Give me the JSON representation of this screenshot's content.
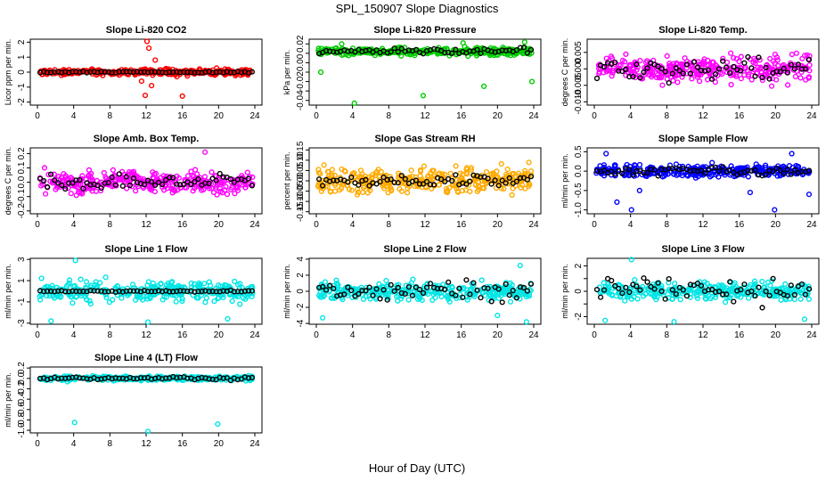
{
  "figure": {
    "title": "SPL_150907  Slope Diagnostics",
    "xlabel": "Hour of Day (UTC)",
    "x_ticks": [
      "0",
      "4",
      "8",
      "12",
      "16",
      "20",
      "24"
    ]
  },
  "chart_data": [
    {
      "type": "scatter",
      "title": "Slope Li-820 CO2",
      "ylabel": "Licor ppm per min.",
      "color": "#ff0000",
      "xlim": [
        0,
        24
      ],
      "ylim": [
        -2.2,
        2.2
      ],
      "y_ticks": [
        -2,
        -1,
        0,
        1,
        2
      ],
      "spread": 0.2,
      "black_spread": 0.05,
      "outliers": [
        [
          12.1,
          2.05
        ],
        [
          12.3,
          1.6
        ],
        [
          11.9,
          -1.55
        ],
        [
          16.0,
          -1.6
        ],
        [
          12.6,
          -0.9
        ],
        [
          13.0,
          0.8
        ],
        [
          11.5,
          -0.6
        ]
      ]
    },
    {
      "type": "scatter",
      "title": "Slope Li-820 Pressure",
      "ylabel": "kPa per min.",
      "color": "#00cc00",
      "xlim": [
        0,
        24
      ],
      "ylim": [
        -0.045,
        0.025
      ],
      "y_ticks": [
        -0.04,
        -0.03,
        -0.02,
        -0.01,
        0.0,
        0.01,
        0.02
      ],
      "y_tick_labels": [
        "-0.04",
        "",
        "-0.02",
        "",
        "0.00",
        "",
        "0.02"
      ],
      "spread": 0.004,
      "black_spread": 0.003,
      "center": 0.012,
      "outliers": [
        [
          4.2,
          -0.043
        ],
        [
          0.5,
          -0.01
        ],
        [
          2.8,
          0.02
        ],
        [
          11.8,
          -0.035
        ],
        [
          18.5,
          -0.025
        ],
        [
          23.8,
          -0.02
        ],
        [
          16.2,
          0.021
        ],
        [
          23.0,
          0.022
        ]
      ]
    },
    {
      "type": "scatter",
      "title": "Slope Li-820 Temp.",
      "ylabel": "degrees C per min.",
      "color": "#ff00ff",
      "xlim": [
        0,
        24
      ],
      "ylim": [
        -0.011,
        0.009
      ],
      "y_ticks": [
        -0.01,
        -0.005,
        0.0,
        0.005
      ],
      "y_tick_labels": [
        "-0.010",
        "-0.005",
        "0.000",
        "0.005"
      ],
      "spread": 0.004,
      "black_spread": 0.003,
      "center": 0.0,
      "outliers": []
    },
    {
      "type": "scatter",
      "title": "Slope Amb. Box Temp.",
      "ylabel": "degrees C per min.",
      "color": "#ff00ff",
      "xlim": [
        0,
        24
      ],
      "ylim": [
        -0.22,
        0.24
      ],
      "y_ticks": [
        -0.2,
        -0.1,
        0.0,
        0.1,
        0.2
      ],
      "y_tick_labels": [
        "-0.2",
        "-0.1",
        "0.0",
        "0.1",
        "0.2"
      ],
      "spread": 0.07,
      "black_spread": 0.05,
      "center": 0.0,
      "outliers": [
        [
          18.5,
          0.21
        ]
      ]
    },
    {
      "type": "scatter",
      "title": "Slope Gas Stream RH",
      "ylabel": "percent per min.",
      "color": "#ffaa00",
      "xlim": [
        0,
        24
      ],
      "ylim": [
        -0.16,
        0.16
      ],
      "y_ticks": [
        -0.15,
        -0.1,
        -0.05,
        0.0,
        0.05,
        0.1,
        0.15
      ],
      "y_tick_labels": [
        "-0.15",
        "-0.10",
        "-0.05",
        "0.00",
        "0.05",
        "0.10",
        "0.15"
      ],
      "spread": 0.06,
      "black_spread": 0.03,
      "center": 0.0,
      "outliers": []
    },
    {
      "type": "scatter",
      "title": "Slope Sample Flow",
      "ylabel": "ml/min per min.",
      "color": "#0000ff",
      "xlim": [
        0,
        24
      ],
      "ylim": [
        -1.1,
        0.6
      ],
      "y_ticks": [
        -1.0,
        -0.5,
        0.0,
        0.5
      ],
      "y_tick_labels": [
        "-1.0",
        "-0.5",
        "0.0",
        "0.5"
      ],
      "spread": 0.15,
      "black_spread": 0.1,
      "center": 0.0,
      "outliers": [
        [
          4.1,
          -1.0
        ],
        [
          19.9,
          -1.0
        ],
        [
          5.0,
          -0.5
        ],
        [
          2.5,
          -0.8
        ],
        [
          17.2,
          -0.55
        ],
        [
          1.3,
          0.45
        ],
        [
          21.8,
          0.45
        ],
        [
          23.7,
          -0.6
        ]
      ]
    },
    {
      "type": "scatter",
      "title": "Slope Line 1 Flow",
      "ylabel": "ml/min per min.",
      "color": "#00e5e5",
      "xlim": [
        0,
        24
      ],
      "ylim": [
        -3.1,
        3.1
      ],
      "y_ticks": [
        -3,
        -1,
        1,
        3
      ],
      "y_tick_labels": [
        "-3",
        "-1",
        "1",
        "3"
      ],
      "spread": 0.9,
      "black_spread": 0.08,
      "center": 0.0,
      "outliers": [
        [
          4.2,
          2.9
        ],
        [
          1.5,
          -2.8
        ],
        [
          12.2,
          -2.9
        ],
        [
          21.0,
          -2.6
        ]
      ]
    },
    {
      "type": "scatter",
      "title": "Slope Line 2 Flow",
      "ylabel": "ml/min per min.",
      "color": "#00e5e5",
      "xlim": [
        0,
        24
      ],
      "ylim": [
        -4.1,
        4.1
      ],
      "y_ticks": [
        -4,
        -2,
        0,
        2,
        4
      ],
      "y_tick_labels": [
        "-4",
        "-2",
        "0",
        "2",
        "4"
      ],
      "spread": 1.0,
      "black_spread": 1.2,
      "center": 0.0,
      "outliers": [
        [
          22.5,
          3.2
        ],
        [
          0.7,
          -3.3
        ],
        [
          23.2,
          -3.8
        ],
        [
          20.0,
          -3.0
        ]
      ]
    },
    {
      "type": "scatter",
      "title": "Slope Line 3 Flow",
      "ylabel": "ml/min per min.",
      "color": "#00e5e5",
      "xlim": [
        0,
        24
      ],
      "ylim": [
        -2.6,
        2.6
      ],
      "y_ticks": [
        -2,
        -1,
        0,
        1,
        2
      ],
      "y_tick_labels": [
        "-2",
        "",
        "0",
        "",
        "2"
      ],
      "spread": 0.7,
      "black_spread": 0.9,
      "center": 0.0,
      "outliers": [
        [
          4.1,
          2.5
        ],
        [
          1.2,
          -2.3
        ],
        [
          8.8,
          -2.4
        ],
        [
          23.2,
          -2.2
        ]
      ]
    },
    {
      "type": "scatter",
      "title": "Slope Line 4 (LT) Flow",
      "ylabel": "ml/min per min.",
      "color": "#00e5e5",
      "xlim": [
        0,
        24
      ],
      "ylim": [
        -1.05,
        0.22
      ],
      "y_ticks": [
        -1.0,
        -0.8,
        -0.6,
        -0.4,
        -0.2,
        0.0,
        0.2
      ],
      "y_tick_labels": [
        "-1.0",
        "-0.8",
        "-0.6",
        "-0.4",
        "-0.2",
        "0.0",
        "0.2"
      ],
      "spread": 0.04,
      "black_spread": 0.03,
      "center": 0.0,
      "outliers": [
        [
          4.1,
          -0.85
        ],
        [
          12.2,
          -1.02
        ],
        [
          19.9,
          -0.88
        ]
      ]
    }
  ]
}
